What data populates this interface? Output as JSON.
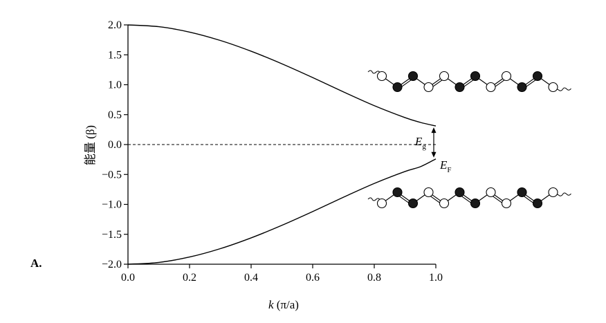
{
  "panel_label": "A.",
  "chart_data": {
    "type": "line",
    "title": "",
    "xlabel": "k (π/a)",
    "xlabel_parts": {
      "var": "k",
      "unit": "(π/a)"
    },
    "ylabel": "能量 (β)",
    "ylabel_parts": {
      "text": "能量",
      "unit": "(β)"
    },
    "xlim": [
      0.0,
      1.0
    ],
    "ylim": [
      -2.0,
      2.0
    ],
    "x_ticks": [
      "0.0",
      "0.2",
      "0.4",
      "0.6",
      "0.8",
      "1.0"
    ],
    "y_ticks": [
      "2.0",
      "1.5",
      "1.0",
      "0.5",
      "0.0",
      "-0.5",
      "-1.0",
      "-1.5",
      "-2.0"
    ],
    "grid": false,
    "legend": "none",
    "series": [
      {
        "style": "solid",
        "x": [
          0.0,
          0.1,
          0.2,
          0.3,
          0.4,
          0.5,
          0.6,
          0.7,
          0.8,
          0.9,
          0.95,
          1.0
        ],
        "y": [
          2.0,
          1.97,
          1.88,
          1.74,
          1.56,
          1.35,
          1.12,
          0.88,
          0.65,
          0.45,
          0.37,
          0.31
        ]
      },
      {
        "style": "solid",
        "x": [
          0.0,
          0.1,
          0.2,
          0.3,
          0.4,
          0.5,
          0.6,
          0.7,
          0.8,
          0.9,
          0.95,
          1.0
        ],
        "y": [
          -2.0,
          -1.97,
          -1.88,
          -1.74,
          -1.56,
          -1.35,
          -1.12,
          -0.88,
          -0.65,
          -0.45,
          -0.37,
          -0.24
        ]
      },
      {
        "style": "dashed",
        "x": [
          0.0,
          1.0
        ],
        "y": [
          0.0,
          0.0
        ]
      }
    ],
    "annotations": [
      {
        "label": "E",
        "subscript": "g",
        "meaning": "band gap arrow between bands at k = 1.0"
      },
      {
        "label": "E",
        "subscript": "F",
        "meaning": "Fermi level mark"
      }
    ],
    "chain_diagrams": [
      "upper polyene chain",
      "lower polyene chain"
    ],
    "colors": {
      "line": "#000000",
      "atom_dark": "#1a1a1a",
      "atom_light": "#ffffff"
    }
  }
}
